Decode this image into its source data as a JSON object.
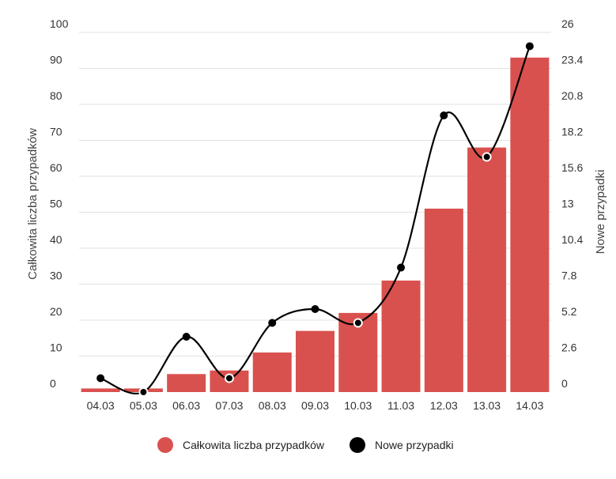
{
  "chart_data": {
    "type": "bar",
    "categories": [
      "04.03",
      "05.03",
      "06.03",
      "07.03",
      "08.03",
      "09.03",
      "10.03",
      "11.03",
      "12.03",
      "13.03",
      "14.03"
    ],
    "series": [
      {
        "name": "Całkowita liczba przypadków",
        "type": "bar",
        "axis": "left",
        "color": "#d9514e",
        "values": [
          1,
          1,
          5,
          6,
          11,
          17,
          22,
          31,
          51,
          68,
          93
        ]
      },
      {
        "name": "Nowe przypadki",
        "type": "line",
        "axis": "right",
        "color": "#000000",
        "values": [
          1,
          0,
          4,
          1,
          5,
          6,
          5,
          9,
          20,
          17,
          25
        ]
      }
    ],
    "ylabel": "Całkowita liczba przypadków",
    "y2label": "Nowe przypadki",
    "ylim": [
      0,
      100
    ],
    "yticks": [
      "0",
      "10",
      "20",
      "30",
      "40",
      "50",
      "60",
      "70",
      "80",
      "90",
      "100"
    ],
    "y2lim": [
      0,
      26
    ],
    "y2ticks": [
      "0",
      "2.6",
      "5.2",
      "7.8",
      "10.4",
      "13",
      "15.6",
      "18.2",
      "20.8",
      "23.4",
      "26"
    ],
    "grid": true,
    "legend": "bottom-center"
  }
}
